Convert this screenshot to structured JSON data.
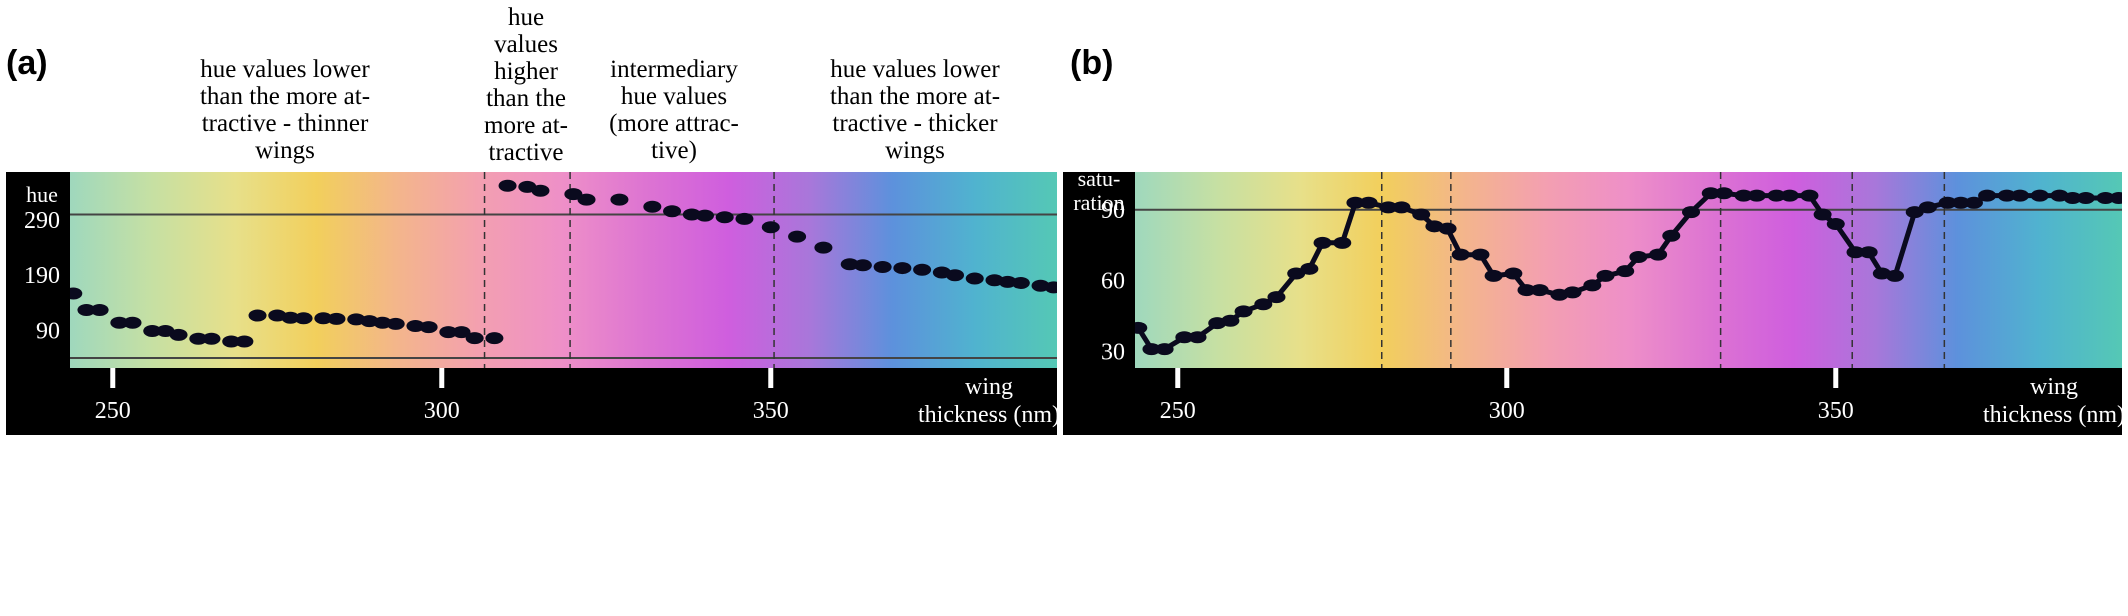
{
  "panels": [
    {
      "label": "(a)"
    },
    {
      "label": "(b)"
    }
  ],
  "annotations": [
    "hue values lower\nthan the more at-\ntractive - thinner\nwings",
    "hue\nvalues\nhigher\nthan the\nmore at-\ntractive",
    "intermediary\nhue values\n(more attrac-\ntive)",
    "hue values lower\nthan the more at-\ntractive - thicker\nwings"
  ],
  "colors": {
    "spectrum": [
      "#9fd8bd",
      "#c6e0a3",
      "#e7e08a",
      "#f2cf5c",
      "#f3b58c",
      "#f39fb1",
      "#ee8fc8",
      "#dd74d2",
      "#cf5ede",
      "#a877da",
      "#5d91dc",
      "#50b3cf",
      "#55c8b5"
    ],
    "frame": "#000000",
    "marker": "#0a0a1e",
    "axis_text": "#ffffff"
  },
  "chart_data": [
    {
      "type": "scatter",
      "panel": "(a)",
      "ylabel": "hue",
      "xlabel": "wing thickness (nm)",
      "xlim": [
        243.5,
        393.5
      ],
      "ylim": [
        22,
        377
      ],
      "xticks": [
        250,
        300,
        350
      ],
      "yticks": [
        90,
        190,
        290
      ],
      "hlines": [
        300,
        40
      ],
      "vlines": [
        306.5,
        319.5,
        350.5
      ],
      "series": [
        {
          "x": [
            244,
            246,
            248,
            251,
            253,
            256,
            258,
            260,
            263,
            265,
            268,
            270,
            272,
            275,
            277,
            279,
            282,
            284,
            287,
            289,
            291,
            293,
            296,
            298,
            301,
            303,
            305,
            308,
            310,
            313,
            315,
            320,
            322,
            327,
            332,
            335,
            338,
            340,
            343,
            346,
            350,
            354,
            358,
            362,
            364,
            367,
            370,
            373,
            376,
            378,
            381,
            384,
            386,
            388,
            391,
            393
          ],
          "y": [
            157,
            127,
            127,
            104,
            104,
            89,
            89,
            82,
            75,
            75,
            70,
            70,
            117,
            117,
            113,
            112,
            112,
            111,
            110,
            107,
            104,
            102,
            98,
            96,
            87,
            87,
            76,
            76,
            352,
            350,
            343,
            337,
            327,
            327,
            314,
            306,
            300,
            298,
            295,
            292,
            277,
            260,
            240,
            210,
            208,
            205,
            203,
            200,
            195,
            190,
            184,
            181,
            178,
            176,
            171,
            168
          ]
        }
      ]
    },
    {
      "type": "line",
      "panel": "(b)",
      "ylabel": "satu-\nration",
      "xlabel": "wing thickness (nm)",
      "xlim": [
        243.5,
        393.5
      ],
      "ylim": [
        23,
        106
      ],
      "xticks": [
        250,
        300,
        350
      ],
      "yticks": [
        30,
        60,
        90
      ],
      "hlines": [
        90
      ],
      "vlines": [
        281,
        291.5,
        332.5,
        352.5,
        366.5
      ],
      "series": [
        {
          "x": [
            244,
            246,
            248,
            251,
            253,
            256,
            258,
            260,
            263,
            265,
            268,
            270,
            272,
            275,
            277,
            279,
            282,
            284,
            287,
            289,
            291,
            293,
            296,
            298,
            301,
            303,
            305,
            308,
            310,
            313,
            315,
            318,
            320,
            323,
            325,
            328,
            331,
            333,
            336,
            338,
            341,
            343,
            346,
            348,
            350,
            353,
            355,
            357,
            359,
            362,
            364,
            367,
            369,
            371,
            373,
            376,
            378,
            381,
            384,
            386,
            388,
            391,
            393
          ],
          "y": [
            40,
            31,
            31,
            36,
            36,
            42,
            43,
            47,
            50,
            53,
            63,
            65,
            76,
            76,
            93,
            93,
            91,
            91,
            88,
            83,
            82,
            71,
            71,
            62,
            63,
            56,
            56,
            54,
            55,
            58,
            62,
            64,
            70,
            71,
            79,
            89,
            97,
            97,
            96,
            96,
            96,
            96,
            96,
            88,
            84,
            72,
            72,
            63,
            62,
            89,
            91,
            93,
            93,
            93,
            96,
            96,
            96,
            96,
            96,
            95,
            95,
            95,
            95
          ]
        }
      ]
    }
  ]
}
